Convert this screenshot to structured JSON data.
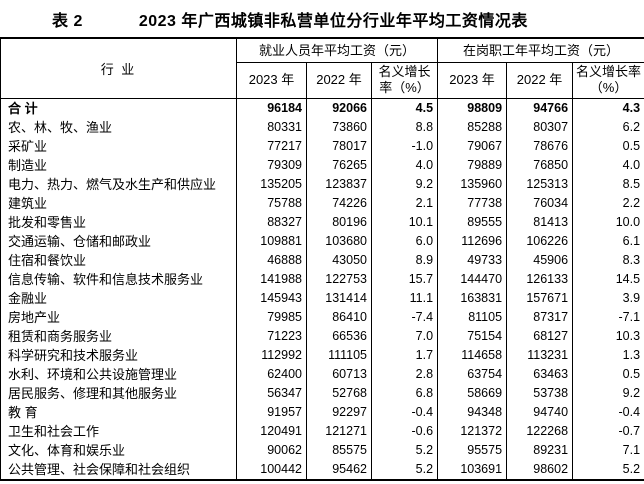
{
  "title": {
    "label": "表 2",
    "text": "2023 年广西城镇非私营单位分行业年平均工资情况表"
  },
  "table": {
    "industry_header": "行  业",
    "groups": [
      {
        "title": "就业人员年平均工资（元）"
      },
      {
        "title": "在岗职工年平均工资（元）"
      }
    ],
    "sub_headers": [
      "2023 年",
      "2022 年",
      "名义增长率（%）",
      "2023 年",
      "2022 年",
      "名义增长率（%）"
    ],
    "rows": [
      {
        "industry": "合 计",
        "bold": true,
        "values": [
          "96184",
          "92066",
          "4.5",
          "98809",
          "94766",
          "4.3"
        ]
      },
      {
        "industry": "农、林、牧、渔业",
        "bold": false,
        "values": [
          "80331",
          "73860",
          "8.8",
          "85288",
          "80307",
          "6.2"
        ]
      },
      {
        "industry": "采矿业",
        "bold": false,
        "values": [
          "77217",
          "78017",
          "-1.0",
          "79067",
          "78676",
          "0.5"
        ]
      },
      {
        "industry": "制造业",
        "bold": false,
        "values": [
          "79309",
          "76265",
          "4.0",
          "79889",
          "76850",
          "4.0"
        ]
      },
      {
        "industry": "电力、热力、燃气及水生产和供应业",
        "bold": false,
        "values": [
          "135205",
          "123837",
          "9.2",
          "135960",
          "125313",
          "8.5"
        ]
      },
      {
        "industry": "建筑业",
        "bold": false,
        "values": [
          "75788",
          "74226",
          "2.1",
          "77738",
          "76034",
          "2.2"
        ]
      },
      {
        "industry": "批发和零售业",
        "bold": false,
        "values": [
          "88327",
          "80196",
          "10.1",
          "89555",
          "81413",
          "10.0"
        ]
      },
      {
        "industry": "交通运输、仓储和邮政业",
        "bold": false,
        "values": [
          "109881",
          "103680",
          "6.0",
          "112696",
          "106226",
          "6.1"
        ]
      },
      {
        "industry": "住宿和餐饮业",
        "bold": false,
        "values": [
          "46888",
          "43050",
          "8.9",
          "49733",
          "45906",
          "8.3"
        ]
      },
      {
        "industry": "信息传输、软件和信息技术服务业",
        "bold": false,
        "values": [
          "141988",
          "122753",
          "15.7",
          "144470",
          "126133",
          "14.5"
        ]
      },
      {
        "industry": "金融业",
        "bold": false,
        "values": [
          "145943",
          "131414",
          "11.1",
          "163831",
          "157671",
          "3.9"
        ]
      },
      {
        "industry": "房地产业",
        "bold": false,
        "values": [
          "79985",
          "86410",
          "-7.4",
          "81105",
          "87317",
          "-7.1"
        ]
      },
      {
        "industry": "租赁和商务服务业",
        "bold": false,
        "values": [
          "71223",
          "66536",
          "7.0",
          "75154",
          "68127",
          "10.3"
        ]
      },
      {
        "industry": "科学研究和技术服务业",
        "bold": false,
        "values": [
          "112992",
          "111105",
          "1.7",
          "114658",
          "113231",
          "1.3"
        ]
      },
      {
        "industry": "水利、环境和公共设施管理业",
        "bold": false,
        "values": [
          "62400",
          "60713",
          "2.8",
          "63754",
          "63463",
          "0.5"
        ]
      },
      {
        "industry": "居民服务、修理和其他服务业",
        "bold": false,
        "values": [
          "56347",
          "52768",
          "6.8",
          "58669",
          "53738",
          "9.2"
        ]
      },
      {
        "industry": "教 育",
        "bold": false,
        "values": [
          "91957",
          "92297",
          "-0.4",
          "94348",
          "94740",
          "-0.4"
        ]
      },
      {
        "industry": "卫生和社会工作",
        "bold": false,
        "values": [
          "120491",
          "121271",
          "-0.6",
          "121372",
          "122268",
          "-0.7"
        ]
      },
      {
        "industry": "文化、体育和娱乐业",
        "bold": false,
        "values": [
          "90062",
          "85575",
          "5.2",
          "95575",
          "89231",
          "7.1"
        ]
      },
      {
        "industry": "公共管理、社会保障和社会组织",
        "bold": false,
        "values": [
          "100442",
          "95462",
          "5.2",
          "103691",
          "98602",
          "5.2"
        ]
      }
    ]
  }
}
